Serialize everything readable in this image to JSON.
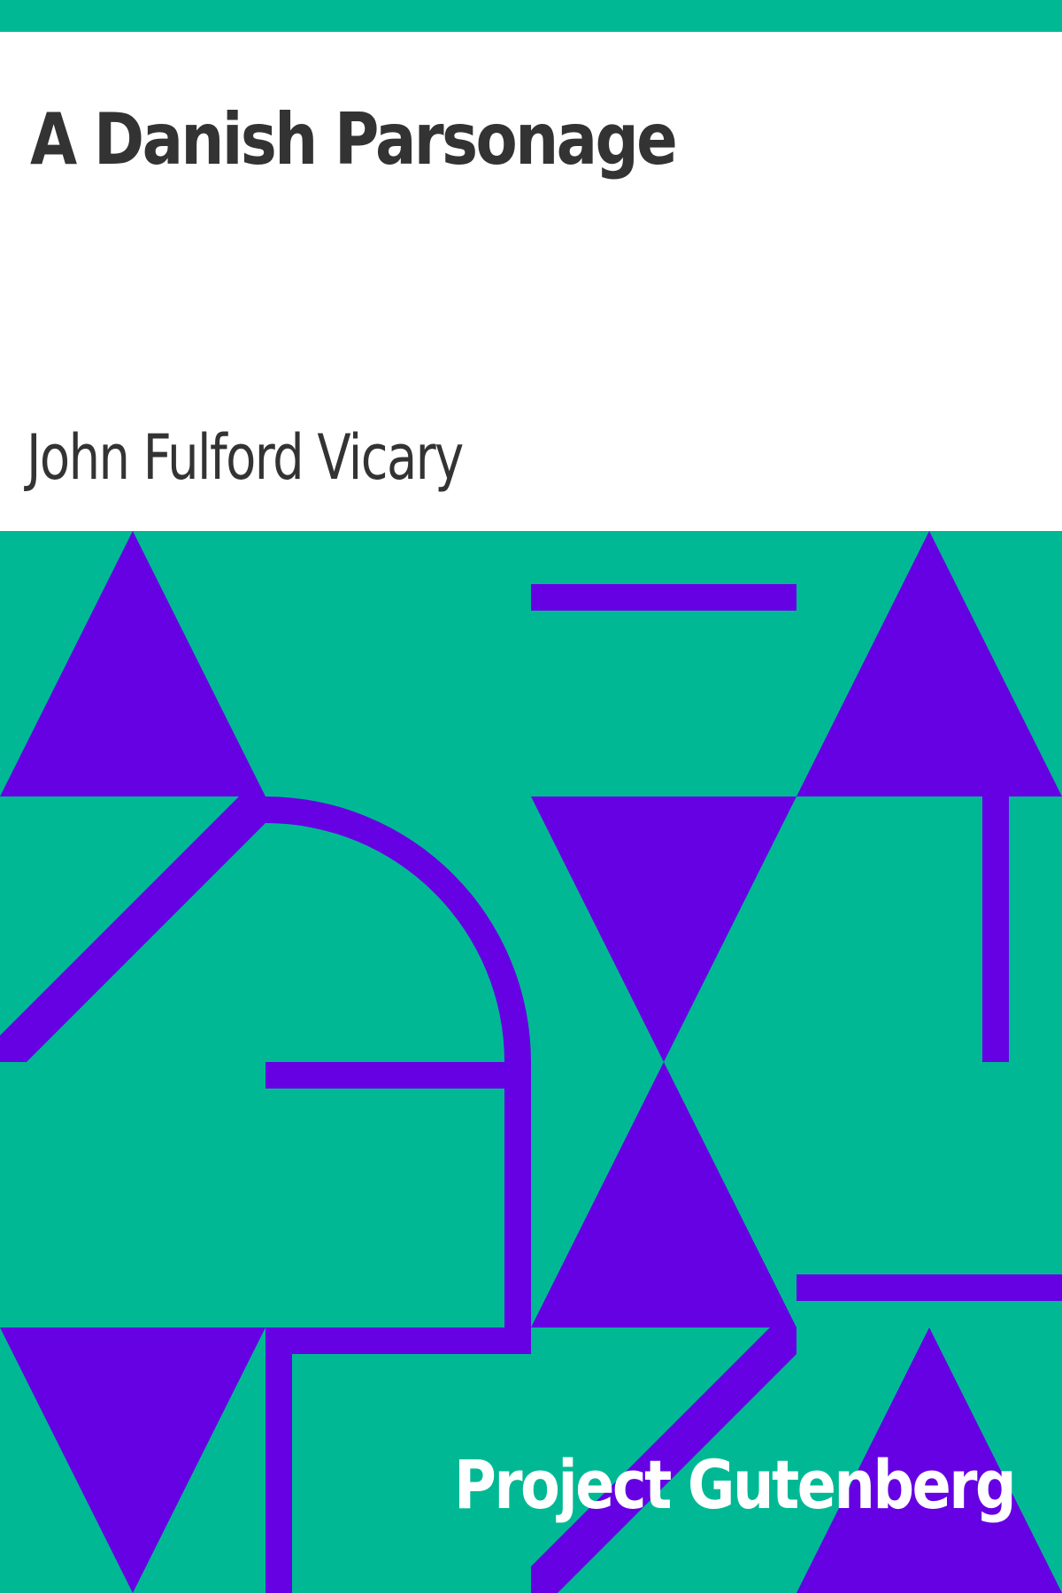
{
  "cover": {
    "title": "A Danish Parsonage",
    "author": "John Fulford Vicary",
    "publisher": "Project Gutenberg"
  },
  "colors": {
    "background": "#ffffff",
    "accent": "#00b994",
    "shape": "#6601e3",
    "text": "#333333",
    "publisher_text": "#ffffff"
  },
  "pattern": {
    "style": "geometric-tiles",
    "shapes": [
      "triangle",
      "bar",
      "arc",
      "diagonal-band"
    ]
  }
}
